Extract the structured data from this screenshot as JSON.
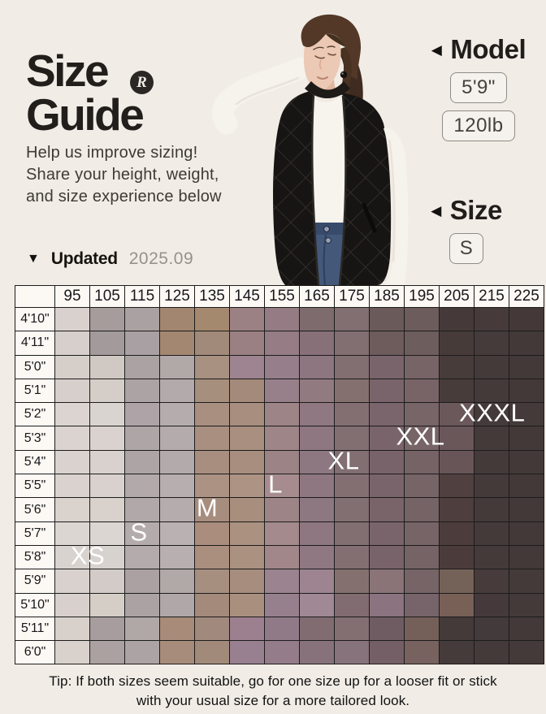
{
  "page": {
    "background": "#f1ece6"
  },
  "header": {
    "title_line1": "Size",
    "title_line2": "Guide",
    "logo_letter": "R",
    "subtitle_lines": [
      "Help us improve sizing!",
      "Share your height, weight,",
      "and size experience below"
    ]
  },
  "model_info": {
    "arrow_left": "◀",
    "model_heading": "Model",
    "model_height": "5'9\"",
    "model_weight": "120lb",
    "size_heading": "Size",
    "model_size": "S"
  },
  "updated": {
    "arrow_down": "▼",
    "label": "Updated",
    "date": "2025.09"
  },
  "chart_data": {
    "type": "heatmap",
    "x_unit": "weight_lb",
    "y_unit": "height_ft_in",
    "columns": [
      "95",
      "105",
      "115",
      "125",
      "135",
      "145",
      "155",
      "165",
      "175",
      "185",
      "195",
      "205",
      "215",
      "225"
    ],
    "rows": [
      "4'10\"",
      "4'11\"",
      "5'0\"",
      "5'1\"",
      "5'2\"",
      "5'3\"",
      "5'4\"",
      "5'5\"",
      "5'6\"",
      "5'7\"",
      "5'8\"",
      "5'9\"",
      "5'10\"",
      "5'11\"",
      "6'0\""
    ],
    "size_labels": [
      {
        "text": "XS",
        "row": 10,
        "col_center": 1.0
      },
      {
        "text": "S",
        "row": 9,
        "col_center": 2.5
      },
      {
        "text": "M",
        "row": 8,
        "col_center": 4.5
      },
      {
        "text": "L",
        "row": 7,
        "col_center": 6.5
      },
      {
        "text": "XL",
        "row": 6,
        "col_center": 8.5
      },
      {
        "text": "XXL",
        "row": 5,
        "col_center": 10.75
      },
      {
        "text": "XXXL",
        "row": 4,
        "col_center": 12.85
      }
    ],
    "cell_colors": [
      [
        "#d8d1cd",
        "#a69c9c",
        "#a9a1a2",
        "#a28670",
        "#a5896f",
        "#9b8184",
        "#947b84",
        "#7d6b6d",
        "#816f71",
        "#6b5a5a",
        "#6d5c5c",
        "#453a39",
        "#463b3a",
        "#443938"
      ],
      [
        "#d6cfcb",
        "#a39a9b",
        "#a8a0a2",
        "#a48771",
        "#a18a7a",
        "#9a8082",
        "#957c85",
        "#887079",
        "#826f71",
        "#6e5c5d",
        "#6e5d5d",
        "#473b3a",
        "#463b3b",
        "#433938"
      ],
      [
        "#d6cec9",
        "#cfc8c3",
        "#aba3a3",
        "#b1a8a8",
        "#a89181",
        "#9d8490",
        "#967e8b",
        "#8d7680",
        "#826f71",
        "#79646b",
        "#776467",
        "#483c3b",
        "#453a3a",
        "#433938"
      ],
      [
        "#d7cfcc",
        "#d5cec8",
        "#aca4a4",
        "#b3aaab",
        "#a78f7e",
        "#a48a7a",
        "#98808a",
        "#917b80",
        "#84716f",
        "#7a646b",
        "#786467",
        "#483c3b",
        "#453a3a",
        "#433938"
      ],
      [
        "#dbd4d0",
        "#dad4d0",
        "#aea4a7",
        "#b5acae",
        "#a98f80",
        "#a78e7e",
        "#9d8487",
        "#8f7882",
        "#836f72",
        "#7b656c",
        "#786568",
        "#6b585a",
        "#453a3a",
        "#443a39"
      ],
      [
        "#dad3cf",
        "#d9d2ce",
        "#ada5a6",
        "#b4abac",
        "#a98f80",
        "#a98f7f",
        "#9e8588",
        "#8e7781",
        "#826f71",
        "#7a646b",
        "#776467",
        "#6a5759",
        "#453a3a",
        "#433939"
      ],
      [
        "#d9d2ce",
        "#d8d1cd",
        "#aca4a5",
        "#b3aaab",
        "#a88e7f",
        "#a88e7e",
        "#9c8386",
        "#8d7780",
        "#826f71",
        "#79636a",
        "#766366",
        "#685557",
        "#453a3a",
        "#433938"
      ],
      [
        "#d9d2ce",
        "#d8d1cd",
        "#b2a9ab",
        "#b7aeb0",
        "#ab9283",
        "#ad9383",
        "#a68c8e",
        "#8e7781",
        "#836f72",
        "#7a646b",
        "#776467",
        "#50403f",
        "#453a3a",
        "#433938"
      ],
      [
        "#d9d2cd",
        "#d8d1cc",
        "#b0a8a9",
        "#b5acad",
        "#a78d7e",
        "#a78e7d",
        "#9d8487",
        "#8d7780",
        "#826f71",
        "#79646a",
        "#766366",
        "#4e3e3d",
        "#453a3a",
        "#433938"
      ],
      [
        "#dcd6d2",
        "#dcd6d2",
        "#b4abad",
        "#b9b1b2",
        "#aa8d7d",
        "#ab9180",
        "#a48a8c",
        "#8e7781",
        "#826f71",
        "#7a646b",
        "#776467",
        "#4c3d3c",
        "#453a3a",
        "#433938"
      ],
      [
        "#d9d3cf",
        "#d8d2ce",
        "#b3abac",
        "#b7afb0",
        "#aa8e7e",
        "#ab9180",
        "#a18789",
        "#8f7882",
        "#836f72",
        "#79636a",
        "#766366",
        "#4b3c3b",
        "#453a3a",
        "#433938"
      ],
      [
        "#d8d1cd",
        "#d3cbc7",
        "#aba1a2",
        "#b1a8a8",
        "#a78f80",
        "#a68d7d",
        "#9b8390",
        "#9d8490",
        "#84716f",
        "#8a7478",
        "#776467",
        "#746157",
        "#473b3b",
        "#443a39"
      ],
      [
        "#d8d0cc",
        "#d5cec7",
        "#aaa2a3",
        "#b0a7a9",
        "#a38a7b",
        "#a9907e",
        "#97808d",
        "#a08894",
        "#816c72",
        "#8b7380",
        "#77646a",
        "#786057",
        "#45393b",
        "#433a39"
      ],
      [
        "#d7d0cb",
        "#a79d9e",
        "#b0a8a7",
        "#a88b79",
        "#a18a7d",
        "#9c8090",
        "#917a87",
        "#816c72",
        "#836f71",
        "#6f5c63",
        "#756059",
        "#443a3a",
        "#433a3b",
        "#433939"
      ],
      [
        "#d8d1cc",
        "#aba1a1",
        "#aca4a4",
        "#a78c7b",
        "#a28a7b",
        "#988090",
        "#947c8a",
        "#87727b",
        "#87737b",
        "#745f66",
        "#77625f",
        "#453b3b",
        "#443a3a",
        "#433a39"
      ]
    ]
  },
  "tip": {
    "lines": [
      "Tip: If both sizes seem suitable, go for one size up for a looser fit or stick",
      "with your usual size for a more tailored look."
    ]
  }
}
